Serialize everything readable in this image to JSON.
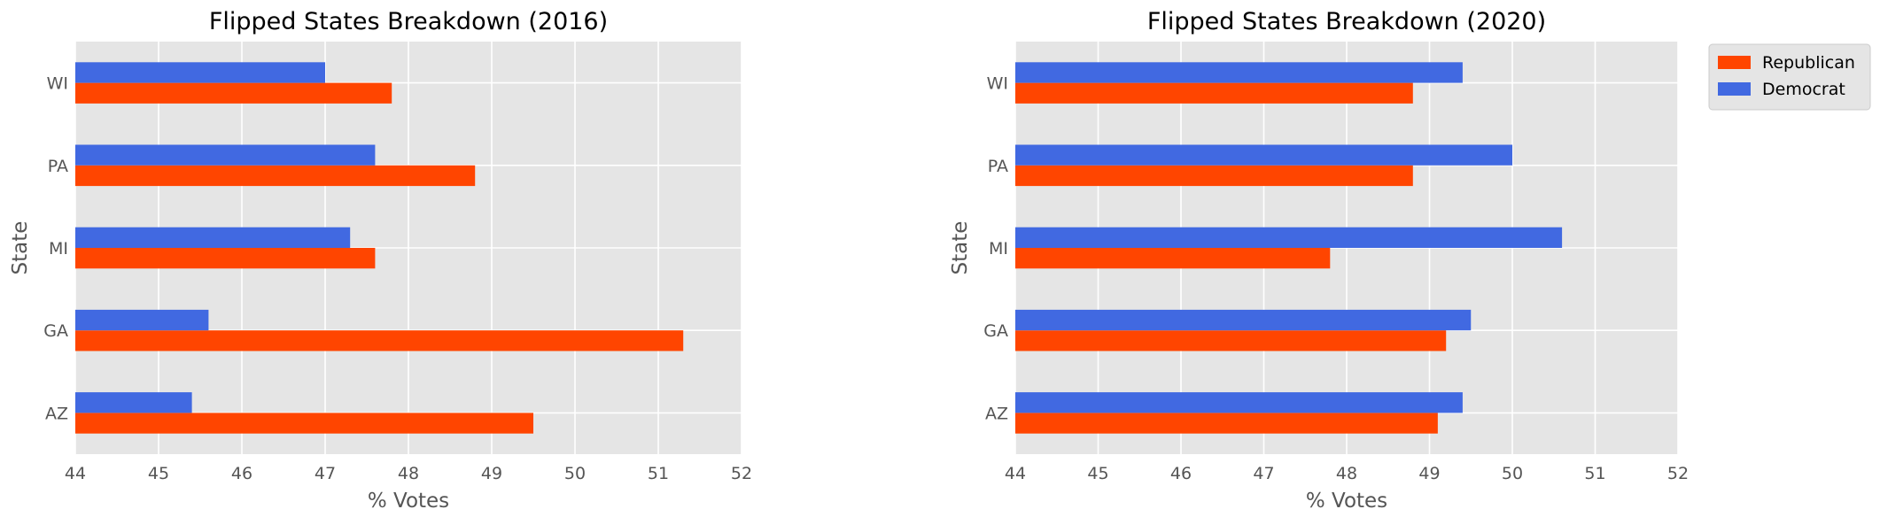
{
  "colors": {
    "plot_background": "#e5e5e5",
    "grid": "#ffffff",
    "republican": "#ff4500",
    "democrat": "#4169e1",
    "text": "#555555",
    "title": "#000000"
  },
  "legend": {
    "placement": "outside upper right",
    "items": [
      {
        "label": "Republican",
        "color": "#ff4500"
      },
      {
        "label": "Democrat",
        "color": "#4169e1"
      }
    ]
  },
  "chart_data": [
    {
      "type": "bar",
      "orientation": "horizontal",
      "title": "Flipped States Breakdown (2016)",
      "xlabel": "% Votes",
      "ylabel": "State",
      "xlim": [
        44,
        52
      ],
      "xticks": [
        44,
        45,
        46,
        47,
        48,
        49,
        50,
        51,
        52
      ],
      "grid": true,
      "categories": [
        "AZ",
        "GA",
        "MI",
        "PA",
        "WI"
      ],
      "series": [
        {
          "name": "Republican",
          "values": [
            49.5,
            51.3,
            47.6,
            48.8,
            47.8
          ]
        },
        {
          "name": "Democrat",
          "values": [
            45.4,
            45.6,
            47.3,
            47.6,
            47.0
          ]
        }
      ]
    },
    {
      "type": "bar",
      "orientation": "horizontal",
      "title": "Flipped States Breakdown (2020)",
      "xlabel": "% Votes",
      "ylabel": "State",
      "xlim": [
        44,
        52
      ],
      "xticks": [
        44,
        45,
        46,
        47,
        48,
        49,
        50,
        51,
        52
      ],
      "grid": true,
      "categories": [
        "AZ",
        "GA",
        "MI",
        "PA",
        "WI"
      ],
      "series": [
        {
          "name": "Republican",
          "values": [
            49.1,
            49.2,
            47.8,
            48.8,
            48.8
          ]
        },
        {
          "name": "Democrat",
          "values": [
            49.4,
            49.5,
            50.6,
            50.0,
            49.4
          ]
        }
      ]
    }
  ]
}
